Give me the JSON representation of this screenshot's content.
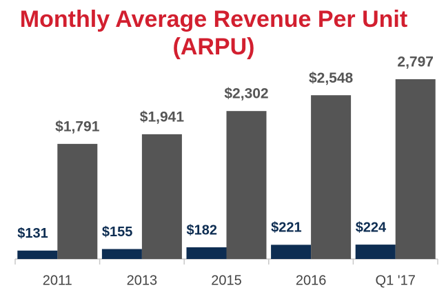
{
  "chart_data": {
    "type": "bar",
    "title": "Monthly Average Revenue Per Unit (ARPU)",
    "categories": [
      "2011",
      "2013",
      "2015",
      "2016",
      "Q1 '17"
    ],
    "series": [
      {
        "color": "#0d2d52",
        "values": [
          131,
          155,
          182,
          221,
          224
        ],
        "value_labels": [
          "$131",
          "$155",
          "$182",
          "$221",
          "$224"
        ]
      },
      {
        "color": "#555555",
        "values": [
          1791,
          1941,
          2302,
          2548,
          2797
        ],
        "value_labels": [
          "$1,791",
          "$1,941",
          "$2,302",
          "$2,548",
          "2,797"
        ]
      }
    ]
  }
}
